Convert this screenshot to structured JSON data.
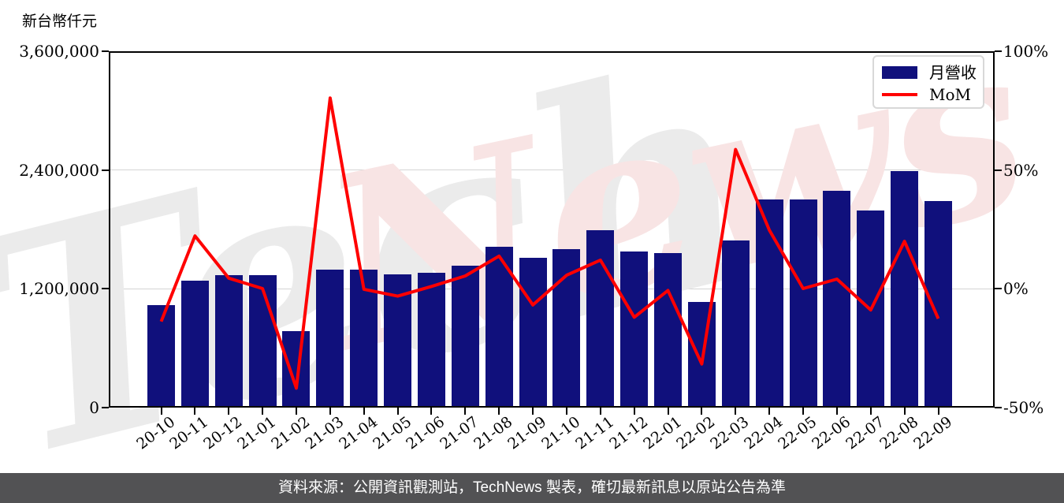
{
  "title": "新台幣仟元",
  "legend": {
    "bar_label": "月營收",
    "line_label": "MoM"
  },
  "footer": {
    "text": "資料來源：公開資訊觀測站，TechNews 製表，確切最新訊息以原站公告為準"
  },
  "watermark": {
    "word1": "Tech",
    "word2": "News"
  },
  "colors": {
    "bar": "#10107c",
    "line": "#ff0000",
    "grid": "#d4d4d4",
    "spine": "#000000",
    "footer_bg": "#525254",
    "watermark_gray": "#ebebeb",
    "watermark_pink": "#f8e4e4"
  },
  "chart_data": {
    "type": "bar+line",
    "title": "新台幣仟元",
    "grid": "horizontal",
    "legend_position": "top-right",
    "categories": [
      "20-10",
      "20-11",
      "20-12",
      "21-01",
      "21-02",
      "21-03",
      "21-04",
      "21-05",
      "21-06",
      "21-07",
      "21-08",
      "21-09",
      "21-10",
      "21-11",
      "21-12",
      "22-01",
      "22-02",
      "22-03",
      "22-04",
      "22-05",
      "22-06",
      "22-07",
      "22-08",
      "22-09"
    ],
    "series": [
      {
        "name": "月營收",
        "type": "bar",
        "axis": "left",
        "unit": "新台幣仟元",
        "values": [
          1036000,
          1276000,
          1332000,
          1332000,
          772000,
          1392000,
          1388000,
          1344000,
          1356000,
          1428000,
          1624000,
          1512000,
          1596000,
          1788000,
          1572000,
          1560000,
          1064000,
          1688000,
          2104000,
          2104000,
          2188000,
          1992000,
          2388000,
          2084000
        ]
      },
      {
        "name": "MoM",
        "type": "line",
        "axis": "right",
        "unit": "%",
        "values": [
          -13.9,
          22.2,
          4.4,
          0.0,
          -42.0,
          80.3,
          -0.3,
          -3.2,
          0.9,
          5.3,
          13.7,
          -6.9,
          5.6,
          12.0,
          -12.1,
          -0.8,
          -31.8,
          58.6,
          24.6,
          0.0,
          4.0,
          -9.0,
          19.9,
          -12.7
        ]
      }
    ],
    "left_axis": {
      "label": "新台幣仟元",
      "range": [
        0,
        3600000
      ],
      "ticks": [
        {
          "label": "0",
          "value": 0
        },
        {
          "label": "1,200,000",
          "value": 1200000
        },
        {
          "label": "2,400,000",
          "value": 2400000
        },
        {
          "label": "3,600,000",
          "value": 3600000
        }
      ]
    },
    "right_axis": {
      "range": [
        -50,
        100
      ],
      "ticks": [
        {
          "label": "-50%",
          "value": -50
        },
        {
          "label": "0%",
          "value": 0
        },
        {
          "label": "50%",
          "value": 50
        },
        {
          "label": "100%",
          "value": 100
        }
      ]
    }
  }
}
